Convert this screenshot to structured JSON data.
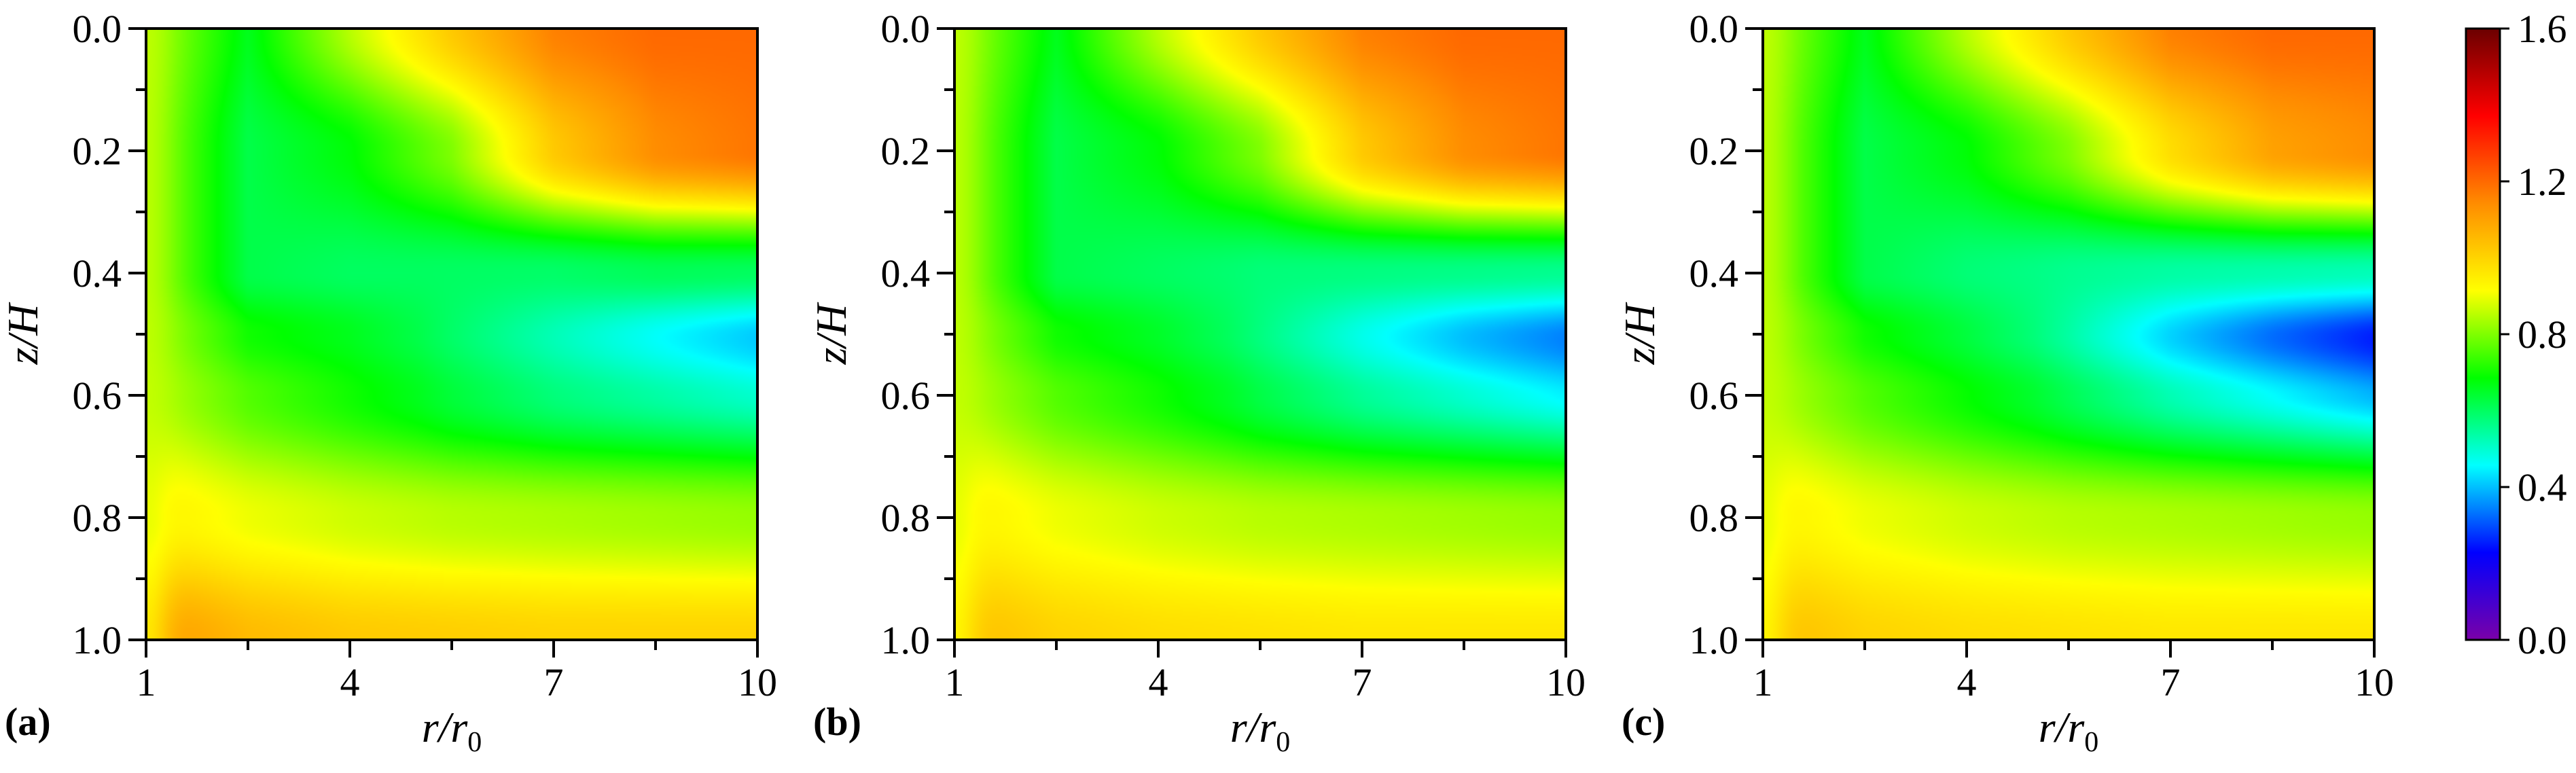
{
  "chart_data": [
    {
      "type": "heatmap",
      "panel_label": "(a)",
      "xlabel": "r/r",
      "xlabel_subscript": "0",
      "ylabel": "z/H",
      "xlim": [
        1,
        10
      ],
      "ylim": [
        0,
        1
      ],
      "y_inverted": true,
      "xticks": [
        "1",
        "4",
        "7",
        "10"
      ],
      "yticks": [
        "0.0",
        "0.2",
        "0.4",
        "0.6",
        "0.8",
        "1.0"
      ],
      "dip_depth": 0.22,
      "surface_values": {
        "r": [
          1,
          2.5,
          4,
          5.5,
          7,
          8.5,
          10
        ],
        "z": [
          0.0,
          0.2,
          0.4,
          0.5,
          0.6,
          0.8,
          1.0
        ],
        "values": [
          [
            0.85,
            0.66,
            0.85,
            1.02,
            1.16,
            1.2,
            1.2
          ],
          [
            0.84,
            0.62,
            0.68,
            0.8,
            1.02,
            1.14,
            1.18
          ],
          [
            0.84,
            0.62,
            0.6,
            0.6,
            0.6,
            0.62,
            0.62
          ],
          [
            0.85,
            0.7,
            0.66,
            0.6,
            0.55,
            0.51,
            0.48
          ],
          [
            0.86,
            0.76,
            0.7,
            0.64,
            0.6,
            0.58,
            0.56
          ],
          [
            0.95,
            0.9,
            0.87,
            0.85,
            0.84,
            0.83,
            0.82
          ],
          [
            1.12,
            1.05,
            1.02,
            1.01,
            1.0,
            1.0,
            1.0
          ]
        ]
      }
    },
    {
      "type": "heatmap",
      "panel_label": "(b)",
      "xlabel": "r/r",
      "xlabel_subscript": "0",
      "ylabel": "z/H",
      "xlim": [
        1,
        10
      ],
      "ylim": [
        0,
        1
      ],
      "y_inverted": true,
      "xticks": [
        "1",
        "4",
        "7",
        "10"
      ],
      "yticks": [
        "0.0",
        "0.2",
        "0.4",
        "0.6",
        "0.8",
        "1.0"
      ],
      "dip_depth": 0.27,
      "surface_values": {
        "r": [
          1,
          2.5,
          4,
          5.5,
          7,
          8.5,
          10
        ],
        "z": [
          0.0,
          0.2,
          0.4,
          0.5,
          0.6,
          0.8,
          1.0
        ],
        "values": [
          [
            0.85,
            0.66,
            0.85,
            1.02,
            1.16,
            1.2,
            1.2
          ],
          [
            0.84,
            0.62,
            0.68,
            0.8,
            1.02,
            1.14,
            1.18
          ],
          [
            0.84,
            0.62,
            0.6,
            0.58,
            0.58,
            0.58,
            0.58
          ],
          [
            0.85,
            0.7,
            0.65,
            0.58,
            0.51,
            0.46,
            0.43
          ],
          [
            0.86,
            0.76,
            0.7,
            0.63,
            0.58,
            0.55,
            0.52
          ],
          [
            0.95,
            0.9,
            0.87,
            0.85,
            0.84,
            0.83,
            0.82
          ],
          [
            1.05,
            1.0,
            0.98,
            0.97,
            0.96,
            0.96,
            0.96
          ]
        ]
      }
    },
    {
      "type": "heatmap",
      "panel_label": "(c)",
      "xlabel": "r/r",
      "xlabel_subscript": "0",
      "ylabel": "z/H",
      "xlim": [
        1,
        10
      ],
      "ylim": [
        0,
        1
      ],
      "y_inverted": true,
      "xticks": [
        "1",
        "4",
        "7",
        "10"
      ],
      "yticks": [
        "0.0",
        "0.2",
        "0.4",
        "0.6",
        "0.8",
        "1.0"
      ],
      "dip_depth": 0.33,
      "surface_values": {
        "r": [
          1,
          2.5,
          4,
          5.5,
          7,
          8.5,
          10
        ],
        "z": [
          0.0,
          0.2,
          0.4,
          0.5,
          0.6,
          0.8,
          1.0
        ],
        "values": [
          [
            0.85,
            0.66,
            0.85,
            1.02,
            1.16,
            1.2,
            1.2
          ],
          [
            0.84,
            0.62,
            0.68,
            0.8,
            0.98,
            1.1,
            1.14
          ],
          [
            0.84,
            0.62,
            0.58,
            0.56,
            0.55,
            0.55,
            0.55
          ],
          [
            0.85,
            0.7,
            0.63,
            0.55,
            0.46,
            0.4,
            0.36
          ],
          [
            0.86,
            0.76,
            0.69,
            0.62,
            0.56,
            0.52,
            0.48
          ],
          [
            0.95,
            0.9,
            0.87,
            0.85,
            0.84,
            0.83,
            0.82
          ],
          [
            1.05,
            1.0,
            0.98,
            0.97,
            0.96,
            0.96,
            0.96
          ]
        ]
      }
    }
  ],
  "colorbar": {
    "range": [
      0.0,
      1.6
    ],
    "ticks": [
      "0.0",
      "0.4",
      "0.8",
      "1.2",
      "1.6"
    ],
    "colormap": [
      "#7a00a8",
      "#0000ff",
      "#00ffff",
      "#00ff00",
      "#ffff00",
      "#ff8c00",
      "#ff0000",
      "#6b0000"
    ]
  }
}
